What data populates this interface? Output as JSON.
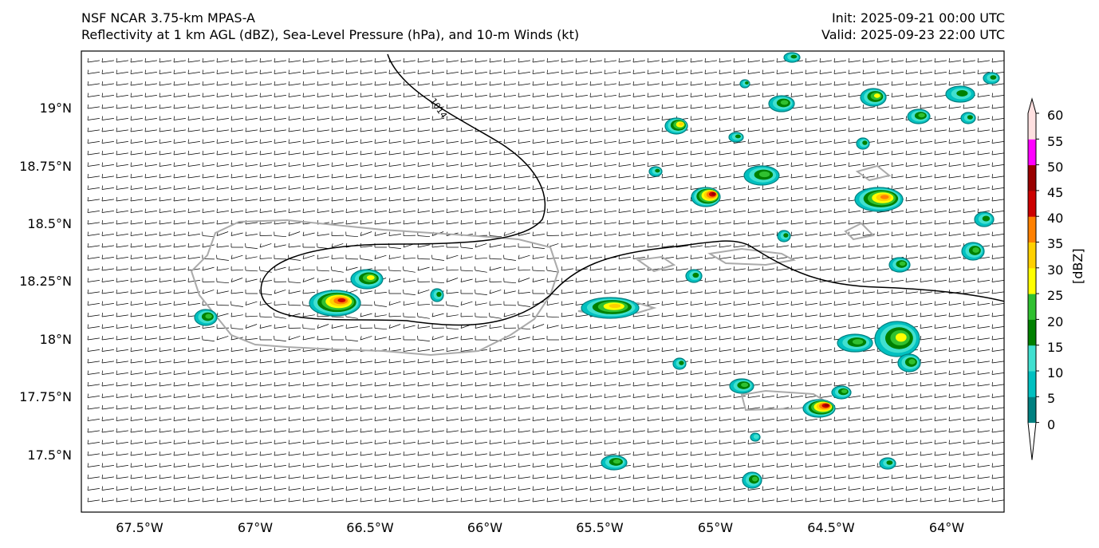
{
  "header": {
    "left_line1": "NSF NCAR 3.75-km MPAS-A",
    "left_line2": "Reflectivity at 1 km AGL (dBZ), Sea-Level Pressure (hPa), and 10-m Winds (kt)",
    "right_line1": "Init: 2025-09-21 00:00 UTC",
    "right_line2": "Valid: 2025-09-23 22:00 UTC"
  },
  "axes": {
    "lat_labels": [
      "19°N",
      "18.75°N",
      "18.5°N",
      "18.25°N",
      "18°N",
      "17.75°N",
      "17.5°N"
    ],
    "lon_labels": [
      "67.5°W",
      "67°W",
      "66.5°W",
      "66°W",
      "65.5°W",
      "65°W",
      "64.5°W",
      "64°W"
    ]
  },
  "isobar_label": "1014",
  "colorbar": {
    "label": "[dBZ]",
    "ticks": [
      "0",
      "5",
      "10",
      "15",
      "20",
      "25",
      "30",
      "35",
      "40",
      "45",
      "50",
      "55",
      "60"
    ],
    "colors": [
      "#008080",
      "#00c0c0",
      "#40e0d0",
      "#008000",
      "#30c030",
      "#ffff00",
      "#ffd000",
      "#ff8000",
      "#cc0000",
      "#990000",
      "#ff00ff",
      "#ffe0e0"
    ]
  },
  "colors": {
    "land_outline": "#aaaaaa",
    "isobar": "#000000"
  }
}
